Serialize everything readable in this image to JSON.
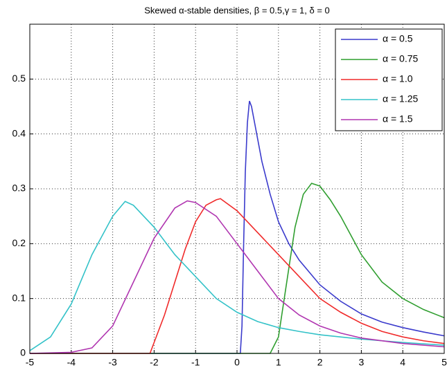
{
  "chart_data": {
    "type": "line",
    "title": "Skewed α-stable densities, β = 0.5,γ = 1, δ = 0",
    "xlim": [
      -5,
      5
    ],
    "ylim": [
      0,
      0.6
    ],
    "xticks": [
      -5,
      -4,
      -3,
      -2,
      -1,
      0,
      1,
      2,
      3,
      4,
      5
    ],
    "yticks": [
      0,
      0.1,
      0.2,
      0.3,
      0.4,
      0.5
    ],
    "grid": true,
    "legend": "top-right",
    "series": [
      {
        "name": "α = 0.5",
        "color": "#3a3acc",
        "x": [
          -5,
          0.08,
          0.12,
          0.16,
          0.2,
          0.25,
          0.3,
          0.35,
          0.4,
          0.5,
          0.6,
          0.8,
          1,
          1.25,
          1.5,
          2,
          2.5,
          3,
          3.5,
          4,
          4.5,
          5
        ],
        "values": [
          0,
          0,
          0.05,
          0.2,
          0.33,
          0.42,
          0.46,
          0.45,
          0.43,
          0.39,
          0.35,
          0.29,
          0.24,
          0.2,
          0.17,
          0.125,
          0.095,
          0.072,
          0.057,
          0.047,
          0.039,
          0.032
        ]
      },
      {
        "name": "α = 0.75",
        "color": "#2f9e2f",
        "x": [
          -5,
          0.8,
          1,
          1.2,
          1.4,
          1.6,
          1.8,
          2,
          2.25,
          2.5,
          3,
          3.5,
          4,
          4.5,
          5
        ],
        "values": [
          0,
          0,
          0.03,
          0.13,
          0.23,
          0.29,
          0.31,
          0.305,
          0.28,
          0.25,
          0.18,
          0.13,
          0.1,
          0.08,
          0.065
        ]
      },
      {
        "name": "α = 1.0",
        "color": "#f02a2a",
        "x": [
          -5,
          -2.1,
          -2,
          -1.75,
          -1.5,
          -1.25,
          -1,
          -0.75,
          -0.5,
          -0.4,
          0,
          0.5,
          1,
          1.5,
          2,
          2.5,
          3,
          3.5,
          4,
          4.5,
          5
        ],
        "values": [
          0,
          0,
          0.02,
          0.07,
          0.13,
          0.19,
          0.24,
          0.27,
          0.28,
          0.282,
          0.26,
          0.22,
          0.18,
          0.14,
          0.1,
          0.075,
          0.055,
          0.04,
          0.03,
          0.023,
          0.018
        ]
      },
      {
        "name": "α = 1.25",
        "color": "#33c2c8",
        "x": [
          -5,
          -4.5,
          -4,
          -3.5,
          -3,
          -2.7,
          -2.5,
          -2,
          -1.5,
          -1,
          -0.5,
          0,
          0.5,
          1,
          1.5,
          2,
          3,
          4,
          5
        ],
        "values": [
          0.005,
          0.03,
          0.09,
          0.18,
          0.25,
          0.277,
          0.27,
          0.23,
          0.18,
          0.14,
          0.1,
          0.075,
          0.058,
          0.047,
          0.04,
          0.034,
          0.026,
          0.02,
          0.015
        ]
      },
      {
        "name": "α = 1.5",
        "color": "#b035b0",
        "x": [
          -5,
          -4,
          -3.5,
          -3,
          -2.5,
          -2,
          -1.5,
          -1.2,
          -1,
          -0.5,
          0,
          0.5,
          1,
          1.5,
          2,
          2.5,
          3,
          4,
          5
        ],
        "values": [
          0,
          0.002,
          0.01,
          0.05,
          0.13,
          0.21,
          0.265,
          0.278,
          0.275,
          0.25,
          0.2,
          0.15,
          0.1,
          0.07,
          0.05,
          0.037,
          0.028,
          0.018,
          0.012
        ]
      }
    ]
  }
}
